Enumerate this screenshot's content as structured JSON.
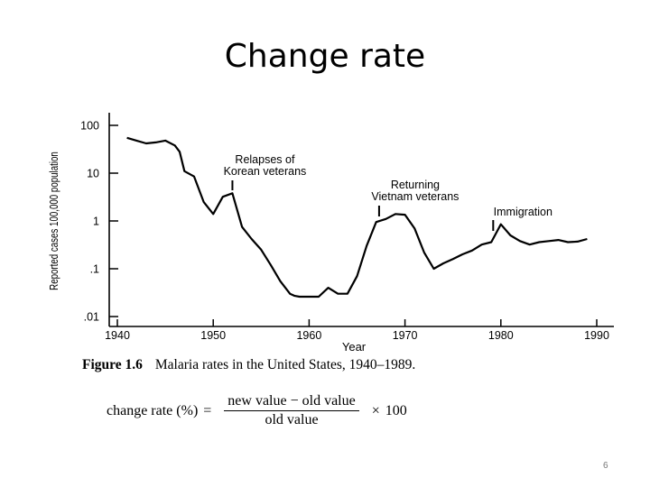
{
  "slide": {
    "title": "Change rate",
    "page_number": "6"
  },
  "figure": {
    "caption_label": "Figure 1.6",
    "caption_text": "Malaria rates in the United States, 1940–1989."
  },
  "formula": {
    "lhs": "change rate (%)",
    "equals": "=",
    "numerator": "new value − old value",
    "denominator": "old value",
    "times": "×",
    "multiplier": "100"
  },
  "chart_data": {
    "type": "line",
    "title": "",
    "xlabel": "Year",
    "ylabel": "Reported cases 100,000 population",
    "xlim": [
      1940,
      1990
    ],
    "ylim": [
      0.01,
      100
    ],
    "yscale": "log",
    "x_ticks": [
      1940,
      1950,
      1960,
      1970,
      1980,
      1990
    ],
    "x_tick_labels": [
      "1940",
      "1950",
      "1960",
      "1970",
      "1980",
      "1990"
    ],
    "y_ticks": [
      100,
      10,
      1,
      0.1,
      0.01
    ],
    "y_tick_labels": [
      "100",
      "10",
      "1",
      ".1",
      ".01"
    ],
    "series": [
      {
        "name": "Malaria rate",
        "x": [
          1941,
          1942,
          1943,
          1944,
          1945,
          1946,
          1946.5,
          1947,
          1948,
          1949,
          1950,
          1951,
          1952,
          1953,
          1954,
          1955,
          1956,
          1957,
          1958,
          1958.5,
          1959,
          1960,
          1961,
          1962,
          1963,
          1964,
          1965,
          1966,
          1967,
          1968,
          1969,
          1970,
          1971,
          1972,
          1973,
          1974,
          1975,
          1976,
          1977,
          1978,
          1979,
          1980,
          1981,
          1982,
          1983,
          1984,
          1985,
          1986,
          1987,
          1988,
          1989
        ],
        "y": [
          55,
          48,
          42,
          44,
          48,
          38,
          28,
          11,
          8.5,
          2.5,
          1.4,
          3.2,
          3.8,
          0.75,
          0.42,
          0.25,
          0.12,
          0.055,
          0.03,
          0.027,
          0.026,
          0.026,
          0.026,
          0.04,
          0.03,
          0.03,
          0.07,
          0.3,
          0.95,
          1.1,
          1.4,
          1.35,
          0.7,
          0.22,
          0.1,
          0.13,
          0.16,
          0.2,
          0.24,
          0.32,
          0.36,
          0.85,
          0.5,
          0.38,
          0.32,
          0.36,
          0.38,
          0.4,
          0.36,
          0.37,
          0.42
        ]
      }
    ],
    "annotations": [
      {
        "text": "Relapses of\nKorean veterans",
        "x": 1952,
        "lines": [
          "Relapses of",
          "Korean veterans"
        ]
      },
      {
        "text": "Returning\nVietnam veterans",
        "x": 1967.3,
        "lines": [
          "Returning",
          "Vietnam veterans"
        ]
      },
      {
        "text": "Immigration",
        "x": 1979.2,
        "lines": [
          "Immigration"
        ]
      }
    ],
    "colors": {
      "line": "#000000",
      "axis": "#000000"
    }
  }
}
